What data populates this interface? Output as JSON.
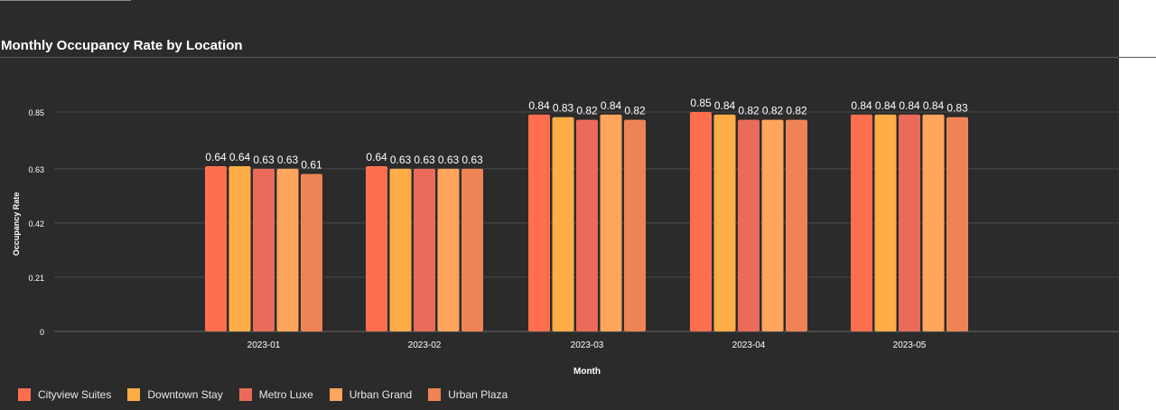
{
  "title": "Monthly Occupancy Rate by Location",
  "chart_data": {
    "type": "bar",
    "title": "Monthly Occupancy Rate by Location",
    "xlabel": "Month",
    "ylabel": "Occupancy Rate",
    "ylim": [
      0,
      0.85
    ],
    "yticks": [
      "0",
      "0.21",
      "0.42",
      "0.63",
      "0.85"
    ],
    "ytick_values": [
      0,
      0.21,
      0.42,
      0.63,
      0.85
    ],
    "grid": true,
    "legend_position": "bottom-left",
    "categories": [
      "2023-01",
      "2023-02",
      "2023-03",
      "2023-04",
      "2023-05"
    ],
    "series": [
      {
        "name": "Cityview Suites",
        "color": "#ff6f4f",
        "values": [
          0.64,
          0.64,
          0.84,
          0.85,
          0.84
        ],
        "labels": [
          "0.64",
          "0.64",
          "0.84",
          "0.85",
          "0.84"
        ]
      },
      {
        "name": "Downtown Stay",
        "color": "#ffad47",
        "values": [
          0.64,
          0.63,
          0.83,
          0.84,
          0.84
        ],
        "labels": [
          "0.64",
          "0.63",
          "0.83",
          "0.84",
          "0.84"
        ]
      },
      {
        "name": "Metro Luxe",
        "color": "#eb6b5a",
        "values": [
          0.63,
          0.63,
          0.82,
          0.82,
          0.84
        ],
        "labels": [
          "0.63",
          "0.63",
          "0.82",
          "0.82",
          "0.84"
        ]
      },
      {
        "name": "Urban Grand",
        "color": "#ffa55c",
        "values": [
          0.63,
          0.63,
          0.84,
          0.82,
          0.84
        ],
        "labels": [
          "0.63",
          "0.63",
          "0.84",
          "0.82",
          "0.84"
        ]
      },
      {
        "name": "Urban Plaza",
        "color": "#ee8456",
        "values": [
          0.61,
          0.63,
          0.82,
          0.82,
          0.83
        ],
        "labels": [
          "0.61",
          "0.63",
          "0.82",
          "0.82",
          "0.83"
        ]
      }
    ]
  }
}
